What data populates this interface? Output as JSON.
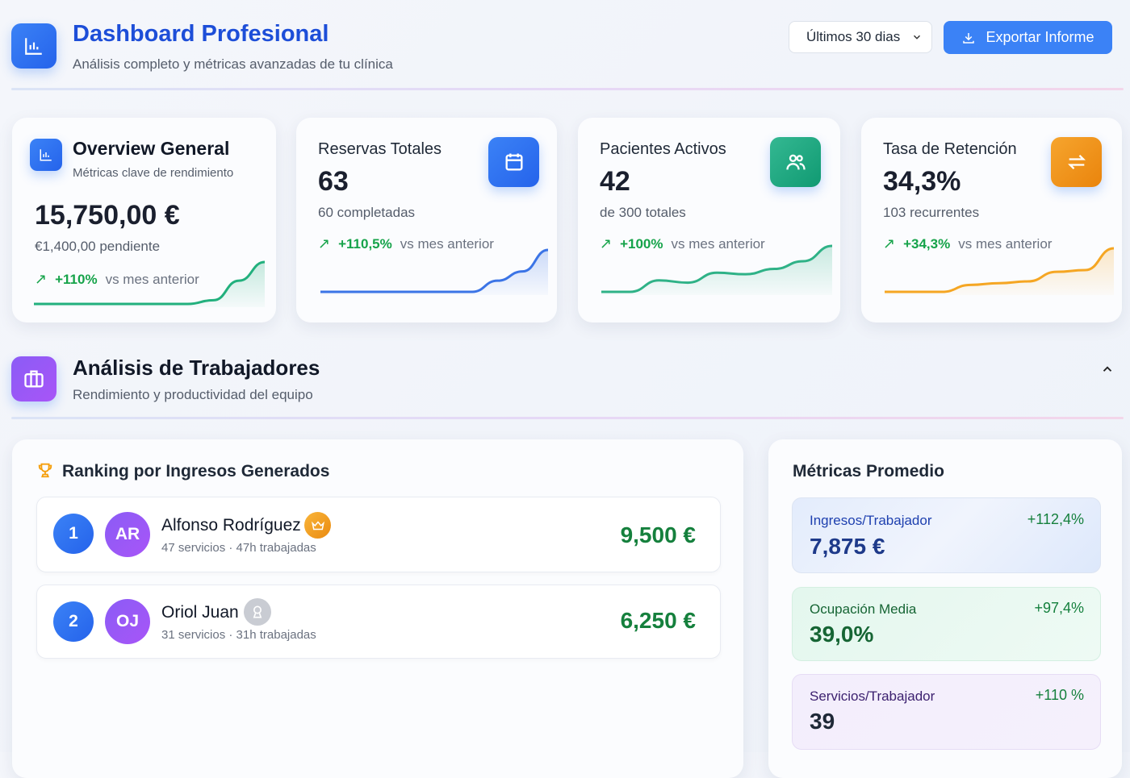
{
  "header": {
    "title": "Dashboard Profesional",
    "subtitle": "Análisis completo y métricas avanzadas de tu clínica",
    "icon": "bar-chart-icon",
    "period": "Últimos 30 dias",
    "export_label": "Exportar Informe"
  },
  "colors": {
    "accent": "#2563eb",
    "green": "#16a34a",
    "orange": "#f59e0b",
    "teal": "#10b981"
  },
  "cards": [
    {
      "title": "Overview General",
      "subtitle": "Métricas clave de rendimiento",
      "value": "15,750,00 €",
      "sub": "€1,400,00 pendiente",
      "change": "+110%",
      "vs": "vs mes anterior",
      "color": "#22b07d",
      "trend": [
        0,
        0,
        0,
        0,
        0,
        0,
        0,
        0.4,
        2.5,
        4.5
      ]
    },
    {
      "title": "Reservas Totales",
      "value": "63",
      "sub": "60  completadas",
      "change": "+110,5%",
      "vs": "vs mes anterior",
      "icon": "calendar-icon",
      "color": "#3b74e6",
      "trend": [
        0,
        0,
        0,
        0,
        0,
        0,
        0,
        1.2,
        2.2,
        4.5
      ]
    },
    {
      "title": "Pacientes Activos",
      "value": "42",
      "sub": "de 300 totales",
      "change": "+100%",
      "vs": "vs mes anterior",
      "icon": "users-icon",
      "color": "#2fb287",
      "trend": [
        0,
        0,
        1.5,
        1.2,
        2.5,
        2.3,
        3,
        4,
        6
      ]
    },
    {
      "title": "Tasa de Retención",
      "value": "34,3%",
      "sub": "103 recurrentes",
      "change": "+34,3%",
      "vs": "vs mes anterior",
      "icon": "repeat-icon",
      "color": "#f5a623",
      "trend": [
        0,
        0,
        0,
        0.8,
        1.0,
        1.2,
        2.3,
        2.5,
        5
      ]
    }
  ],
  "section": {
    "title": "Análisis de Trabajadores",
    "subtitle": "Rendimiento y productividad del equipo"
  },
  "ranking": {
    "title": "Ranking por Ingresos Generados",
    "items": [
      {
        "rank": "1",
        "initials": "AR",
        "name": "Alfonso Rodríguez",
        "meta": "47 servicios · 47h trabajadas",
        "amount": "9,500 €",
        "badge": "crown-icon"
      },
      {
        "rank": "2",
        "initials": "OJ",
        "name": "Oriol Juan",
        "meta": "31 servicios · 31h trabajadas",
        "amount": "6,250 €",
        "badge": "medal-icon"
      }
    ]
  },
  "metrics": {
    "title": "Métricas Promedio",
    "items": [
      {
        "label": "Ingresos/Trabajador",
        "value": "7,875 €",
        "change": "+112,4%"
      },
      {
        "label": "Ocupación Media",
        "value": "39,0%",
        "change": "+97,4%"
      },
      {
        "label": "Servicios/Trabajador",
        "value": "39",
        "change": "+110 %"
      }
    ]
  }
}
